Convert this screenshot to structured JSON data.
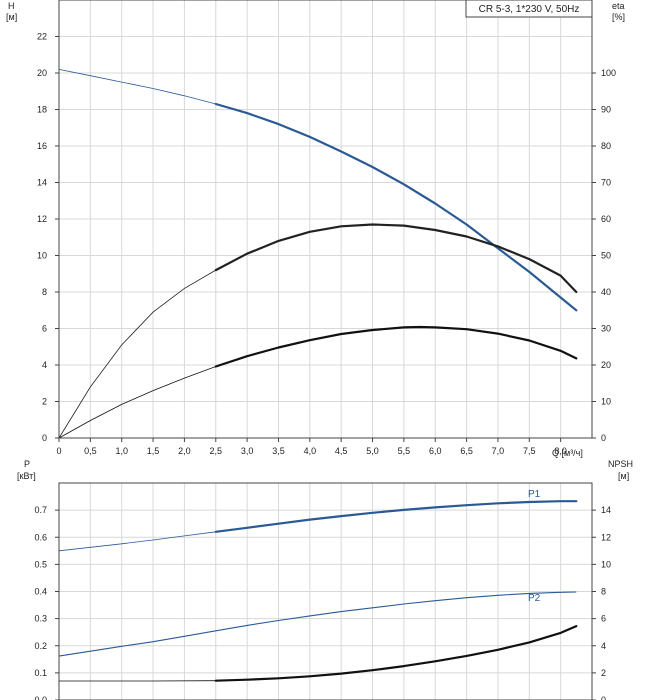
{
  "chart_data": [
    {
      "type": "line",
      "title": "CR 5-3, 1*230 V, 50Hz",
      "x_axis": {
        "label": "Q [м³/ч]",
        "range": [
          0,
          8.5
        ],
        "ticks": [
          "0",
          "0,5",
          "1,0",
          "1,5",
          "2,0",
          "2,5",
          "3,0",
          "3,5",
          "4,0",
          "4,5",
          "5,0",
          "5,5",
          "6,0",
          "6,5",
          "7,0",
          "7,5",
          "8,0"
        ]
      },
      "y_left": {
        "label_line1": "H",
        "label_line2": "[м]",
        "range": [
          0,
          24
        ],
        "ticks": [
          "0",
          "2",
          "4",
          "6",
          "8",
          "10",
          "12",
          "14",
          "16",
          "18",
          "20",
          "22"
        ]
      },
      "y_right": {
        "label_line1": "eta",
        "label_line2": "[%]",
        "range": [
          0,
          120
        ],
        "ticks": [
          "0",
          "10",
          "20",
          "30",
          "40",
          "50",
          "60",
          "70",
          "80",
          "90",
          "100"
        ]
      },
      "grid": true,
      "series": [
        {
          "name": "",
          "axis": "left",
          "color": "#2a5a96",
          "bold_from": 2.5,
          "x": [
            0,
            0.5,
            1,
            1.5,
            2,
            2.5,
            3,
            3.5,
            4,
            4.5,
            5,
            5.5,
            6,
            6.5,
            7,
            7.5,
            8,
            8.25
          ],
          "y": [
            20.2,
            19.85,
            19.5,
            19.15,
            18.75,
            18.3,
            17.8,
            17.2,
            16.5,
            15.7,
            14.85,
            13.9,
            12.85,
            11.7,
            10.4,
            9.1,
            7.7,
            7.0
          ]
        },
        {
          "name": "",
          "axis": "right",
          "color": "#222222",
          "bold_from": 2.5,
          "x": [
            0,
            0.5,
            1,
            1.5,
            2,
            2.5,
            3,
            3.5,
            4,
            4.5,
            5,
            5.5,
            6,
            6.5,
            7,
            7.5,
            8,
            8.25
          ],
          "y": [
            0,
            14,
            25.5,
            34.5,
            41,
            46,
            50.5,
            54,
            56.5,
            58,
            58.5,
            58.2,
            57,
            55.2,
            52.5,
            49,
            44.5,
            40
          ]
        },
        {
          "name": "",
          "axis": "right",
          "color": "#111111",
          "bold_from": 2.5,
          "x": [
            0,
            0.5,
            1,
            1.5,
            2,
            2.5,
            3,
            3.5,
            4,
            4.5,
            5,
            5.5,
            5.75,
            6,
            6.5,
            7,
            7.5,
            8,
            8.25
          ],
          "y": [
            0,
            4.8,
            9.2,
            13,
            16.4,
            19.6,
            22.4,
            24.8,
            26.8,
            28.5,
            29.6,
            30.3,
            30.4,
            30.3,
            29.8,
            28.6,
            26.7,
            23.9,
            21.8
          ]
        }
      ]
    },
    {
      "type": "line",
      "x_axis": {
        "range": [
          0,
          8.5
        ]
      },
      "y_left": {
        "label_line1": "P",
        "label_line2": "[кВт]",
        "range": [
          0,
          0.8
        ],
        "ticks": [
          "0.0",
          "0.1",
          "0.2",
          "0.3",
          "0.4",
          "0.5",
          "0.6",
          "0.7"
        ]
      },
      "y_right": {
        "label_line1": "NPSH",
        "label_line2": "[м]",
        "range": [
          0,
          16
        ],
        "ticks": [
          "0",
          "2",
          "4",
          "6",
          "8",
          "10",
          "12",
          "14"
        ]
      },
      "grid": true,
      "series": [
        {
          "name": "P1",
          "axis": "left",
          "color": "#2a5a96",
          "bold_from": 2.5,
          "x": [
            0,
            0.5,
            1,
            1.5,
            2,
            2.5,
            3,
            3.5,
            4,
            4.5,
            5,
            5.5,
            6,
            6.5,
            7,
            7.5,
            8,
            8.25
          ],
          "y": [
            0.55,
            0.563,
            0.576,
            0.59,
            0.605,
            0.62,
            0.635,
            0.65,
            0.665,
            0.678,
            0.69,
            0.701,
            0.71,
            0.718,
            0.725,
            0.73,
            0.733,
            0.733
          ]
        },
        {
          "name": "P2",
          "axis": "left",
          "color": "#2a5a96",
          "bold_from": 99,
          "x": [
            0,
            0.5,
            1,
            1.5,
            2,
            2.5,
            3,
            3.5,
            4,
            4.5,
            5,
            5.5,
            6,
            6.5,
            7,
            7.5,
            8,
            8.25
          ],
          "y": [
            0.162,
            0.18,
            0.198,
            0.215,
            0.235,
            0.255,
            0.275,
            0.293,
            0.31,
            0.326,
            0.34,
            0.354,
            0.366,
            0.377,
            0.386,
            0.393,
            0.397,
            0.398
          ]
        },
        {
          "name": "",
          "axis": "right",
          "color": "#111111",
          "bold_from": 2.5,
          "x": [
            0,
            1,
            1.5,
            2.5,
            3,
            3.5,
            4,
            4.5,
            5,
            5.5,
            6,
            6.5,
            7,
            7.5,
            8,
            8.25
          ],
          "y": [
            1.4,
            1.4,
            1.4,
            1.42,
            1.5,
            1.6,
            1.75,
            1.95,
            2.2,
            2.5,
            2.85,
            3.25,
            3.7,
            4.25,
            4.95,
            5.45
          ]
        }
      ]
    }
  ]
}
